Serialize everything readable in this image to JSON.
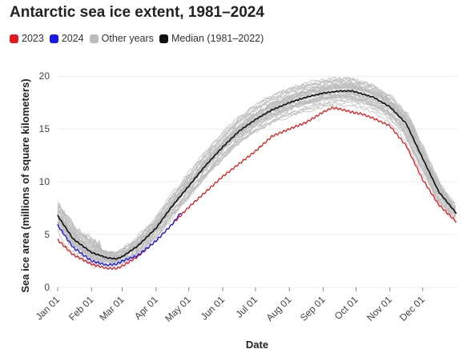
{
  "colors": {
    "series_2023": "#e31a1c",
    "series_2024": "#1a1ae6",
    "other_years": "#bdbdbd",
    "median": "#111111",
    "grid": "#ebebeb"
  },
  "chart_data": {
    "type": "line",
    "title": "Antarctic sea ice extent, 1981–2024",
    "xlabel": "Date",
    "ylabel": "Sea ice area (millions of square kilometers)",
    "x_unit": "day of year",
    "ylim": [
      0,
      21
    ],
    "xlim": [
      1,
      366
    ],
    "grid": "horizontal",
    "legend_position": "top-left",
    "x_ticks": [
      {
        "label": "Jan 01",
        "day": 1
      },
      {
        "label": "Feb 01",
        "day": 32
      },
      {
        "label": "Mar 01",
        "day": 60
      },
      {
        "label": "Apr 01",
        "day": 91
      },
      {
        "label": "May 01",
        "day": 121
      },
      {
        "label": "Jun 01",
        "day": 152
      },
      {
        "label": "Jul 01",
        "day": 182
      },
      {
        "label": "Aug 01",
        "day": 213
      },
      {
        "label": "Sep 01",
        "day": 244
      },
      {
        "label": "Oct 01",
        "day": 274
      },
      {
        "label": "Nov 01",
        "day": 305
      },
      {
        "label": "Dec 01",
        "day": 335
      }
    ],
    "y_ticks": [
      0,
      5,
      10,
      15,
      20
    ],
    "legend": [
      {
        "label": "2023",
        "color": "#e31a1c"
      },
      {
        "label": "2024",
        "color": "#1a1ae6"
      },
      {
        "label": "Other years",
        "color": "#bdbdbd"
      },
      {
        "label": "Median (1981–2022)",
        "color": "#111111"
      }
    ],
    "series": [
      {
        "name": "Median (1981–2022)",
        "x": [
          1,
          15,
          32,
          46,
          55,
          60,
          74,
          91,
          105,
          121,
          136,
          152,
          167,
          182,
          197,
          213,
          228,
          244,
          259,
          270,
          274,
          290,
          305,
          320,
          335,
          350,
          366
        ],
        "y": [
          6.8,
          4.6,
          3.3,
          2.8,
          2.7,
          2.9,
          3.9,
          5.6,
          7.6,
          9.6,
          11.5,
          13.3,
          14.8,
          15.9,
          16.8,
          17.5,
          18.0,
          18.4,
          18.6,
          18.6,
          18.5,
          18.0,
          17.1,
          15.5,
          12.2,
          9.0,
          7.0
        ]
      },
      {
        "name": "2023",
        "x": [
          1,
          15,
          32,
          46,
          55,
          60,
          74,
          91,
          105,
          121,
          136,
          152,
          167,
          182,
          197,
          213,
          228,
          244,
          252,
          259,
          270,
          280,
          290,
          305,
          320,
          335,
          350,
          366
        ],
        "y": [
          4.5,
          3.1,
          2.2,
          1.8,
          1.8,
          2.0,
          2.9,
          4.4,
          5.9,
          7.6,
          9.0,
          10.5,
          11.7,
          12.9,
          14.3,
          15.0,
          15.6,
          16.6,
          17.0,
          16.9,
          16.6,
          16.4,
          16.0,
          15.3,
          13.4,
          10.2,
          7.8,
          6.2
        ]
      },
      {
        "name": "2024",
        "x": [
          1,
          15,
          32,
          46,
          55,
          60,
          74,
          91,
          105,
          114
        ],
        "y": [
          5.9,
          3.8,
          2.5,
          2.1,
          2.2,
          2.5,
          3.0,
          4.4,
          5.9,
          7.1
        ]
      }
    ]
  }
}
